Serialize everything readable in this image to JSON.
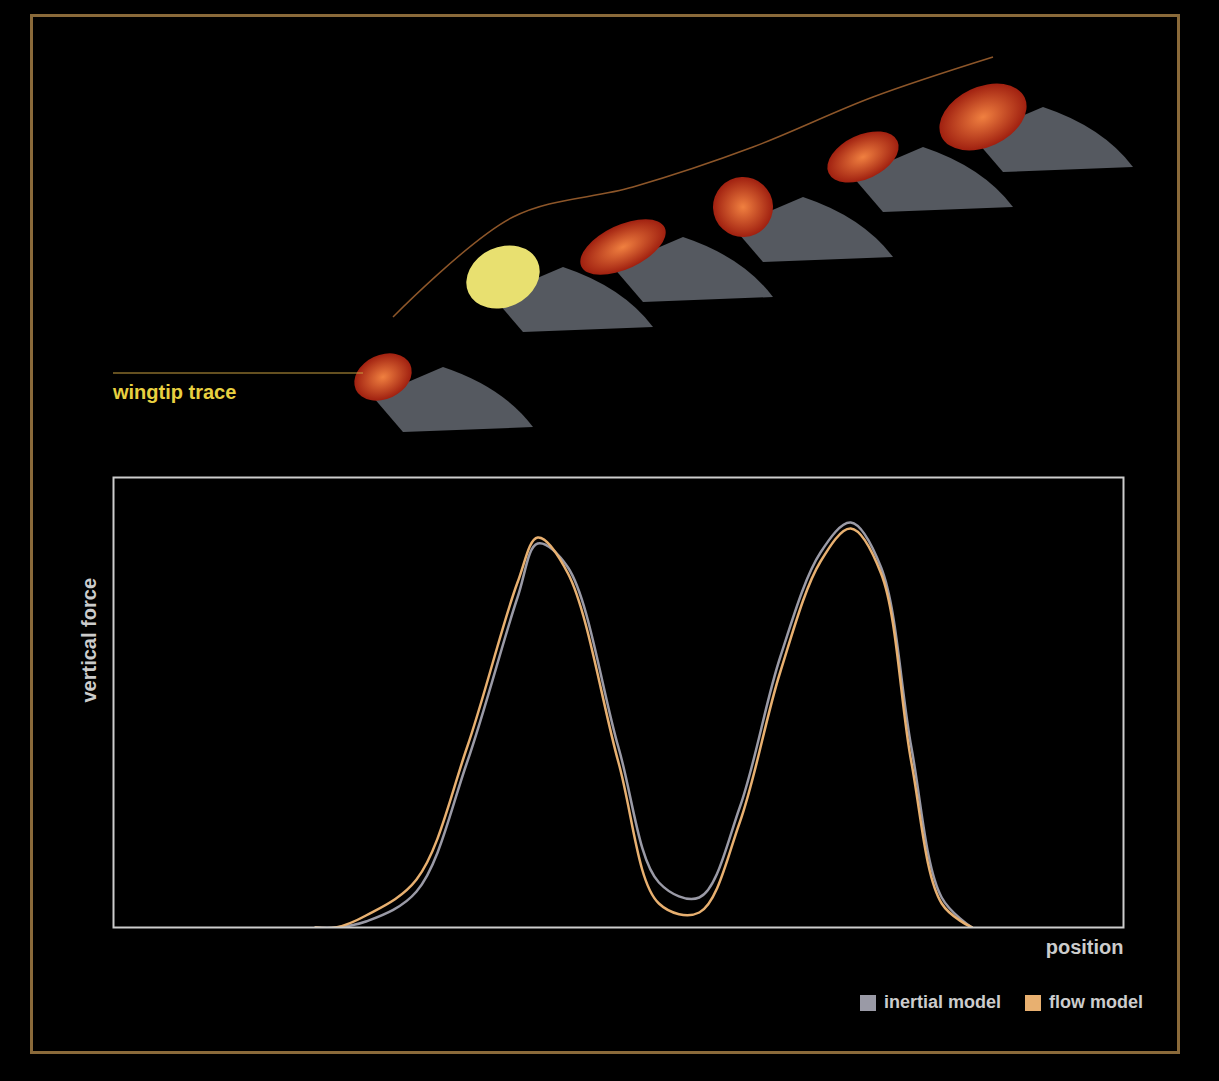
{
  "chart_data": {
    "type": "line",
    "xlabel": "position",
    "ylabel": "vertical force",
    "annotations": [
      "wingtip trace"
    ],
    "x": [
      20,
      22,
      25,
      30,
      35,
      40,
      42,
      45,
      50,
      54,
      58,
      62,
      66,
      70,
      73,
      76,
      79,
      82,
      85
    ],
    "series": [
      {
        "name": "inertial model",
        "color": "#9a9aa6",
        "values": [
          0,
          0,
          2,
          12,
          55,
          110,
          128,
          120,
          60,
          15,
          10,
          40,
          90,
          125,
          135,
          120,
          60,
          10,
          0
        ]
      },
      {
        "name": "flow model",
        "color": "#e8b070",
        "values": [
          0,
          0,
          4,
          16,
          60,
          115,
          130,
          118,
          55,
          8,
          5,
          35,
          85,
          122,
          133,
          118,
          55,
          8,
          0
        ]
      }
    ],
    "xlim": [
      0,
      100
    ],
    "ylim": [
      0,
      150
    ],
    "xticks": [],
    "yticks": [],
    "tick_labels": false,
    "grid": false,
    "legend": "bottom-right"
  }
}
